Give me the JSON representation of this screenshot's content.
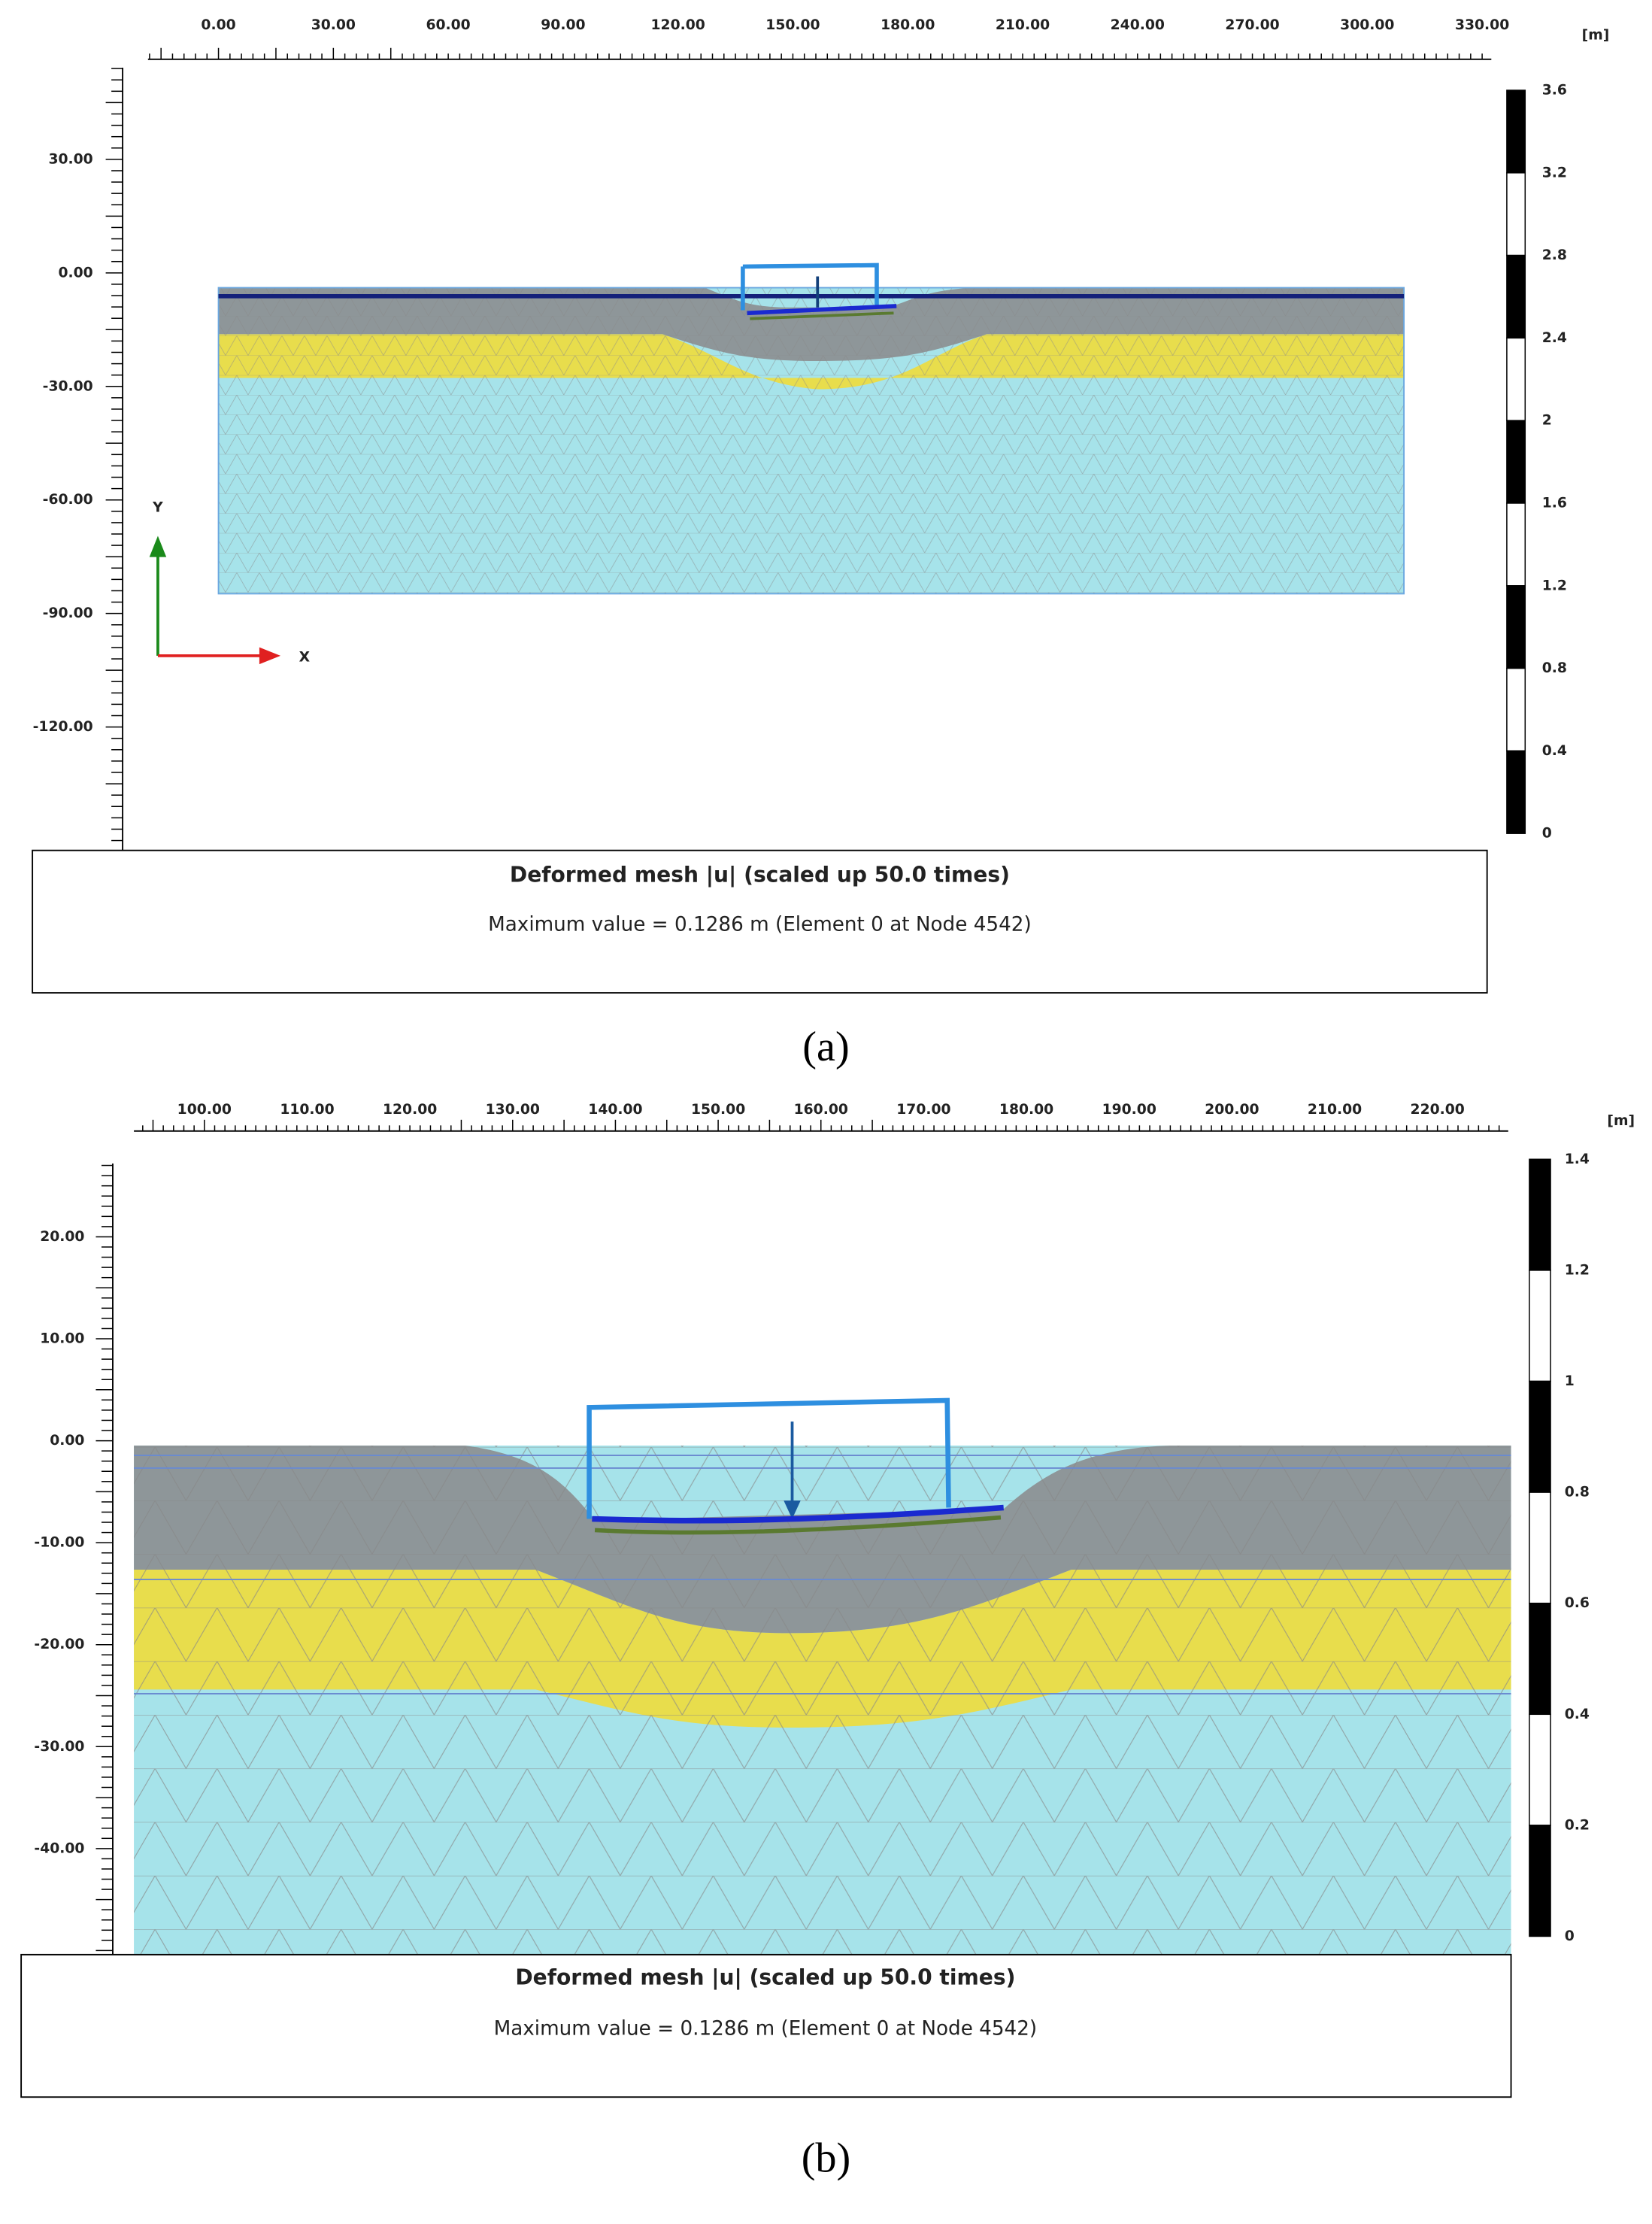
{
  "panels": [
    {
      "x_ticks": [
        "0.00",
        "30.00",
        "60.00",
        "90.00",
        "120.00",
        "150.00",
        "180.00",
        "210.00",
        "240.00",
        "270.00",
        "300.00",
        "330.00"
      ],
      "y_ticks": [
        "30.00",
        "0.00",
        "-30.00",
        "-60.00",
        "-90.00",
        "-120.00"
      ],
      "unit": "[m]",
      "legend_ticks": [
        "3.6",
        "3.2",
        "2.8",
        "2.4",
        "2",
        "1.6",
        "1.2",
        "0.8",
        "0.4",
        "0"
      ],
      "axis_y": "Y",
      "axis_x": "X",
      "title": "Deformed mesh |u| (scaled up 50.0 times)",
      "subtitle": "Maximum value = 0.1286 m (Element 0 at Node 4542)",
      "caption": "(a)"
    },
    {
      "x_ticks": [
        "100.00",
        "110.00",
        "120.00",
        "130.00",
        "140.00",
        "150.00",
        "160.00",
        "170.00",
        "180.00",
        "190.00",
        "200.00",
        "210.00",
        "220.00"
      ],
      "y_ticks": [
        "20.00",
        "10.00",
        "0.00",
        "-10.00",
        "-20.00",
        "-30.00",
        "-40.00"
      ],
      "unit": "[m]",
      "legend_ticks": [
        "1.4",
        "1.2",
        "1",
        "0.8",
        "0.6",
        "0.4",
        "0.2",
        "0"
      ],
      "title": "Deformed mesh |u| (scaled up 50.0 times)",
      "subtitle": "Maximum value = 0.1286 m (Element 0 at Node 4542)",
      "caption": "(b)"
    }
  ]
}
